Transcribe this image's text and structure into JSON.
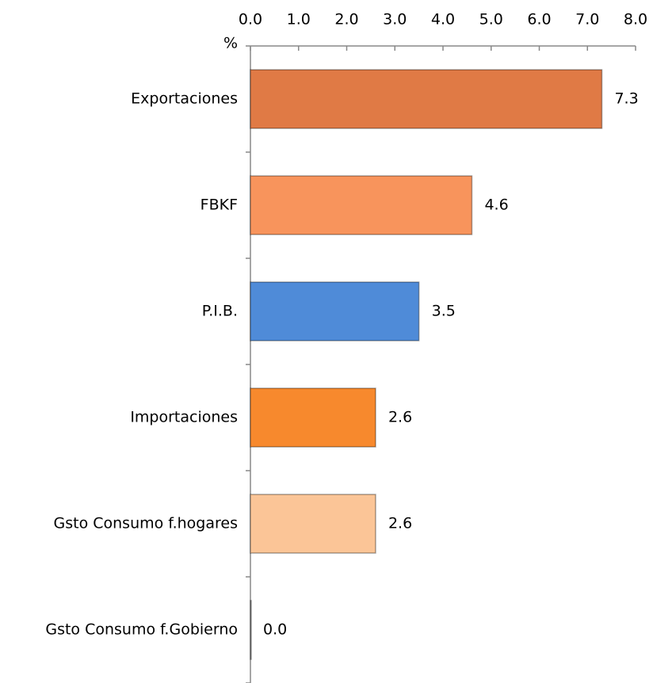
{
  "chart_data": {
    "type": "hbar",
    "axis_label": "%",
    "categories": [
      "Exportaciones",
      "FBKF",
      "P.I.B.",
      "Importaciones",
      "Gsto Consumo f.hogares",
      "Gsto Consumo f.Gobierno"
    ],
    "values": [
      7.3,
      4.6,
      3.5,
      2.6,
      2.6,
      0
    ],
    "value_labels": [
      "7.3",
      "4.6",
      "3.5",
      "2.6",
      "2.6",
      "0.0"
    ],
    "colors": [
      "#e07a45",
      "#f8945c",
      "#4f8bd8",
      "#f7892d",
      "#fbc597",
      "#999999"
    ],
    "xlim": [
      0,
      8
    ],
    "xticks": [
      {
        "value": 0,
        "label": "0.0"
      },
      {
        "value": 1,
        "label": "1.0"
      },
      {
        "value": 2,
        "label": "2.0"
      },
      {
        "value": 3,
        "label": "3.0"
      },
      {
        "value": 4,
        "label": "4.0"
      },
      {
        "value": 5,
        "label": "5.0"
      },
      {
        "value": 6,
        "label": "6.0"
      },
      {
        "value": 7,
        "label": "7.0"
      },
      {
        "value": 8,
        "label": "8.0"
      }
    ]
  }
}
